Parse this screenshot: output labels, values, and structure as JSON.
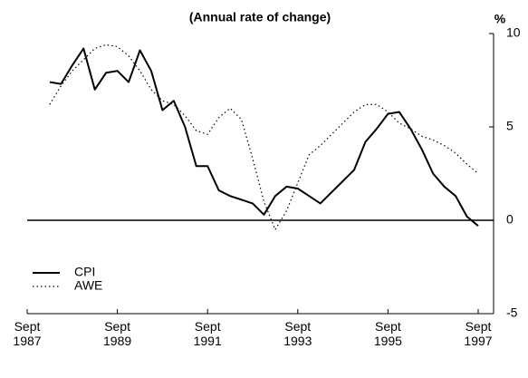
{
  "chart_data": {
    "type": "line",
    "title": "(Annual rate of change)",
    "y_label": "%",
    "x": [
      "1988-03",
      "1988-06",
      "1988-09",
      "1988-12",
      "1989-03",
      "1989-06",
      "1989-09",
      "1989-12",
      "1990-03",
      "1990-06",
      "1990-09",
      "1990-12",
      "1991-03",
      "1991-06",
      "1991-09",
      "1991-12",
      "1992-03",
      "1992-06",
      "1992-09",
      "1992-12",
      "1993-03",
      "1993-06",
      "1993-09",
      "1993-12",
      "1994-03",
      "1994-06",
      "1994-09",
      "1994-12",
      "1995-03",
      "1995-06",
      "1995-09",
      "1995-12",
      "1996-03",
      "1996-06",
      "1996-09",
      "1996-12",
      "1997-03",
      "1997-06",
      "1997-09"
    ],
    "series": [
      {
        "name": "CPI",
        "color": "#000000",
        "style": "solid",
        "values": [
          7.4,
          7.3,
          8.3,
          9.2,
          7.0,
          7.9,
          8.0,
          7.4,
          9.1,
          8.0,
          5.9,
          6.4,
          5.0,
          2.9,
          2.9,
          1.6,
          1.3,
          1.1,
          0.9,
          0.3,
          1.3,
          1.8,
          1.7,
          1.3,
          0.9,
          1.5,
          2.1,
          2.7,
          4.2,
          4.9,
          5.7,
          5.8,
          4.9,
          3.8,
          2.5,
          1.8,
          1.3,
          0.2,
          -0.3
        ]
      },
      {
        "name": "AWE",
        "color": "#000000",
        "style": "dotted",
        "values": [
          6.2,
          7.2,
          8.0,
          8.6,
          9.2,
          9.4,
          9.3,
          8.8,
          8.0,
          7.0,
          6.4,
          6.2,
          5.6,
          4.8,
          4.6,
          5.5,
          6.0,
          5.4,
          3.3,
          1.0,
          -0.5,
          0.5,
          2.0,
          3.5,
          4.0,
          4.6,
          5.2,
          5.8,
          6.2,
          6.2,
          5.8,
          5.2,
          4.9,
          4.5,
          4.3,
          4.0,
          3.6,
          3.0,
          2.5
        ]
      }
    ],
    "xlim": [
      "1987-09",
      "1997-09"
    ],
    "xticks": [
      {
        "value": "1987-09",
        "label": "Sept 1987"
      },
      {
        "value": "1989-09",
        "label": "Sept 1989"
      },
      {
        "value": "1991-09",
        "label": "Sept 1991"
      },
      {
        "value": "1993-09",
        "label": "Sept 1993"
      },
      {
        "value": "1995-09",
        "label": "Sept 1995"
      },
      {
        "value": "1997-09",
        "label": "Sept 1997"
      }
    ],
    "ylim": [
      -5,
      10
    ],
    "yticks": [
      -5,
      0,
      5,
      10
    ],
    "legend": "bottom-left"
  }
}
